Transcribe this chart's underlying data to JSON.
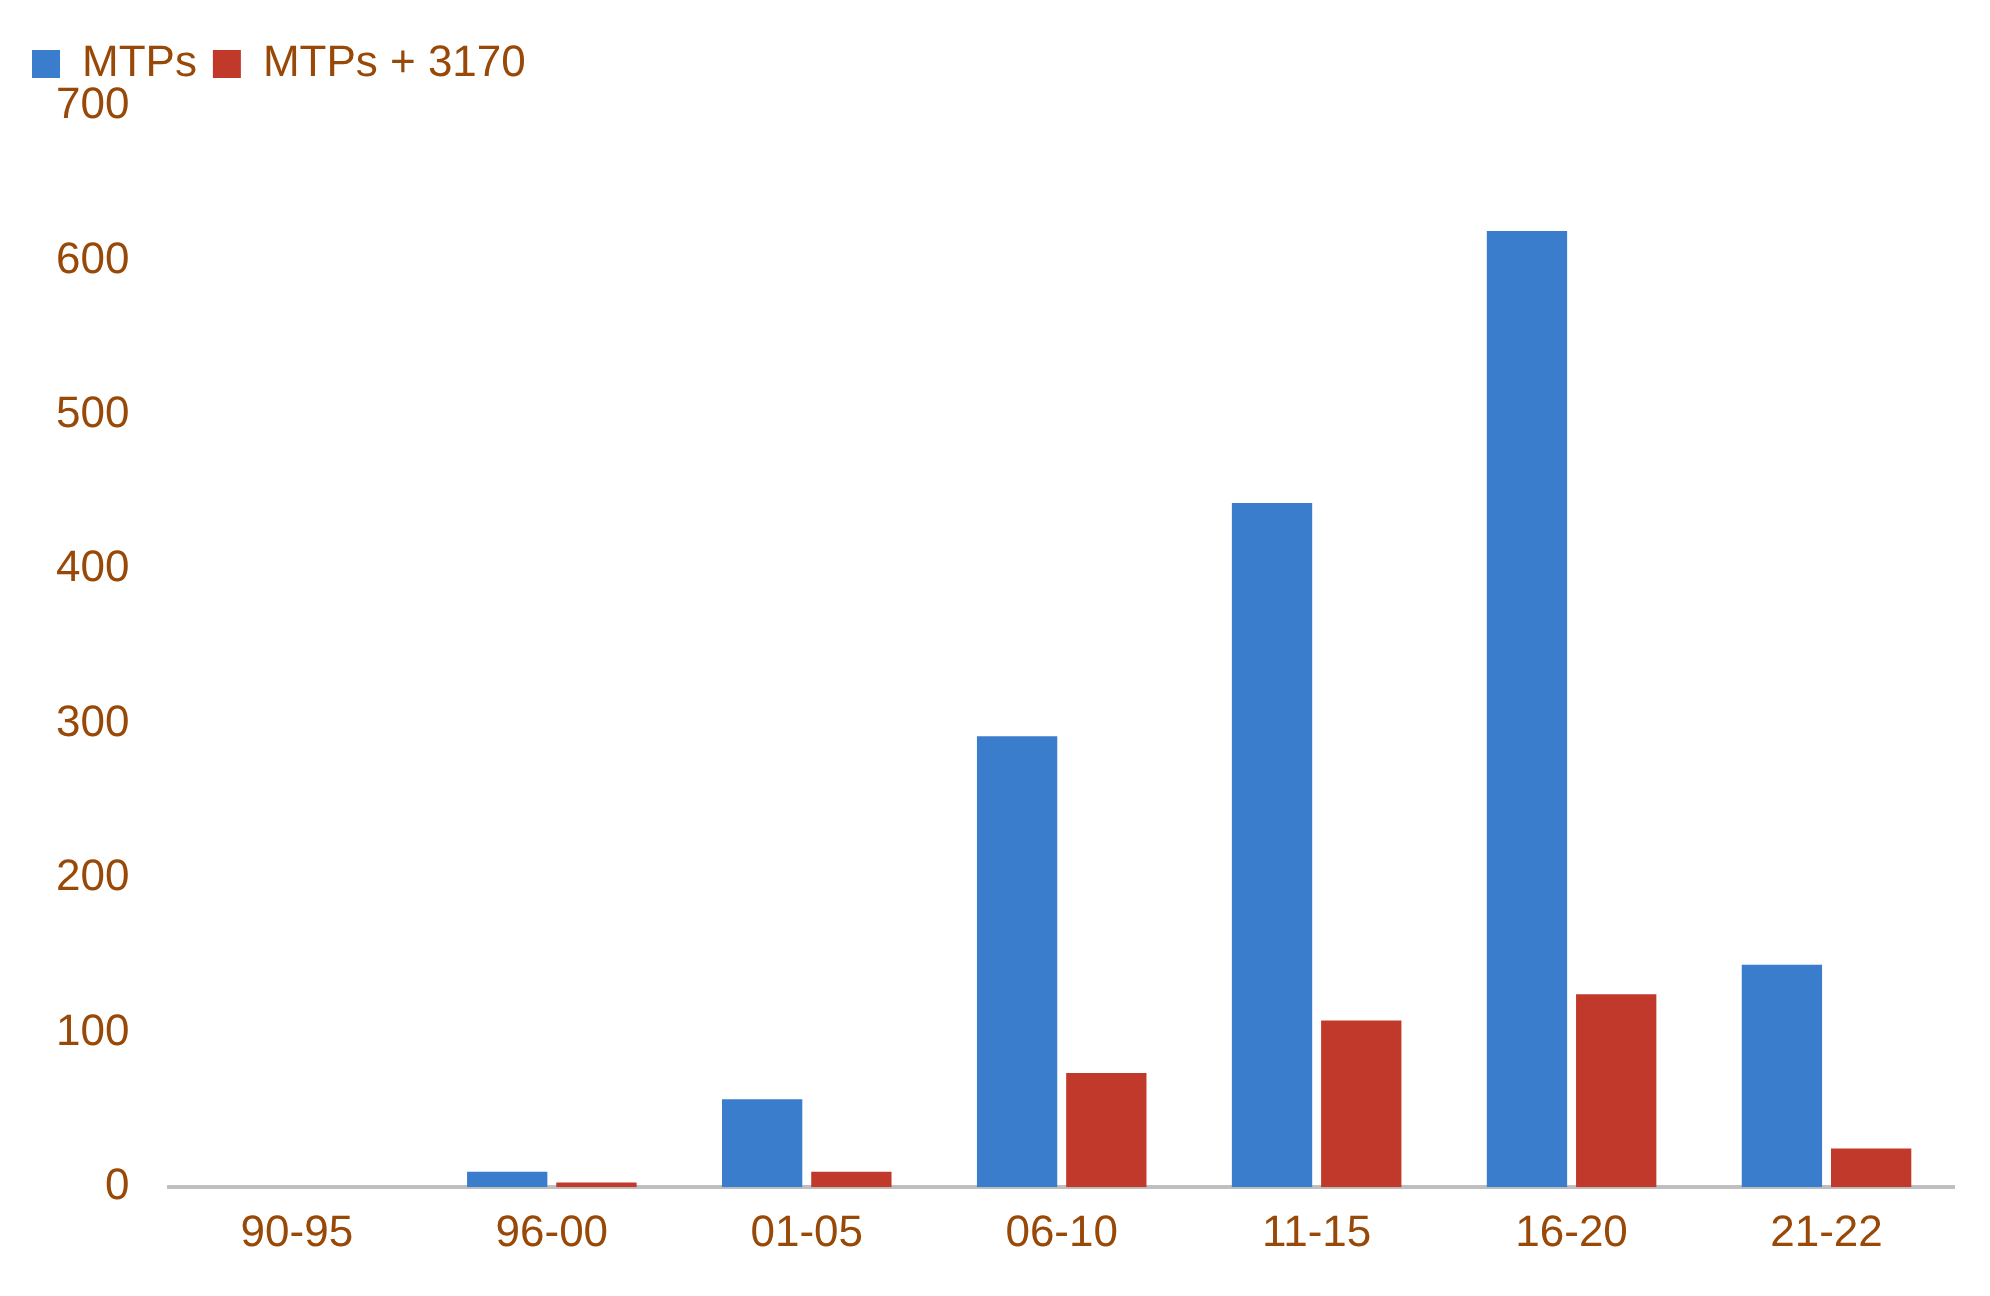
{
  "chart_data": {
    "type": "bar",
    "categories": [
      "90-95",
      "96-00",
      "01-05",
      "06-10",
      "11-15",
      "16-20",
      "21-22"
    ],
    "series": [
      {
        "name": "MTPs",
        "color": "#3a7dcc",
        "values": [
          0,
          10,
          57,
          292,
          443,
          619,
          144
        ]
      },
      {
        "name": "MTPs + 3170",
        "color": "#c0392b",
        "values": [
          0,
          3,
          10,
          74,
          108,
          125,
          25
        ]
      }
    ],
    "ylim": [
      0,
      700
    ],
    "yticks": [
      0,
      100,
      200,
      300,
      400,
      500,
      600,
      700
    ],
    "grid": false,
    "legend": "top left"
  }
}
